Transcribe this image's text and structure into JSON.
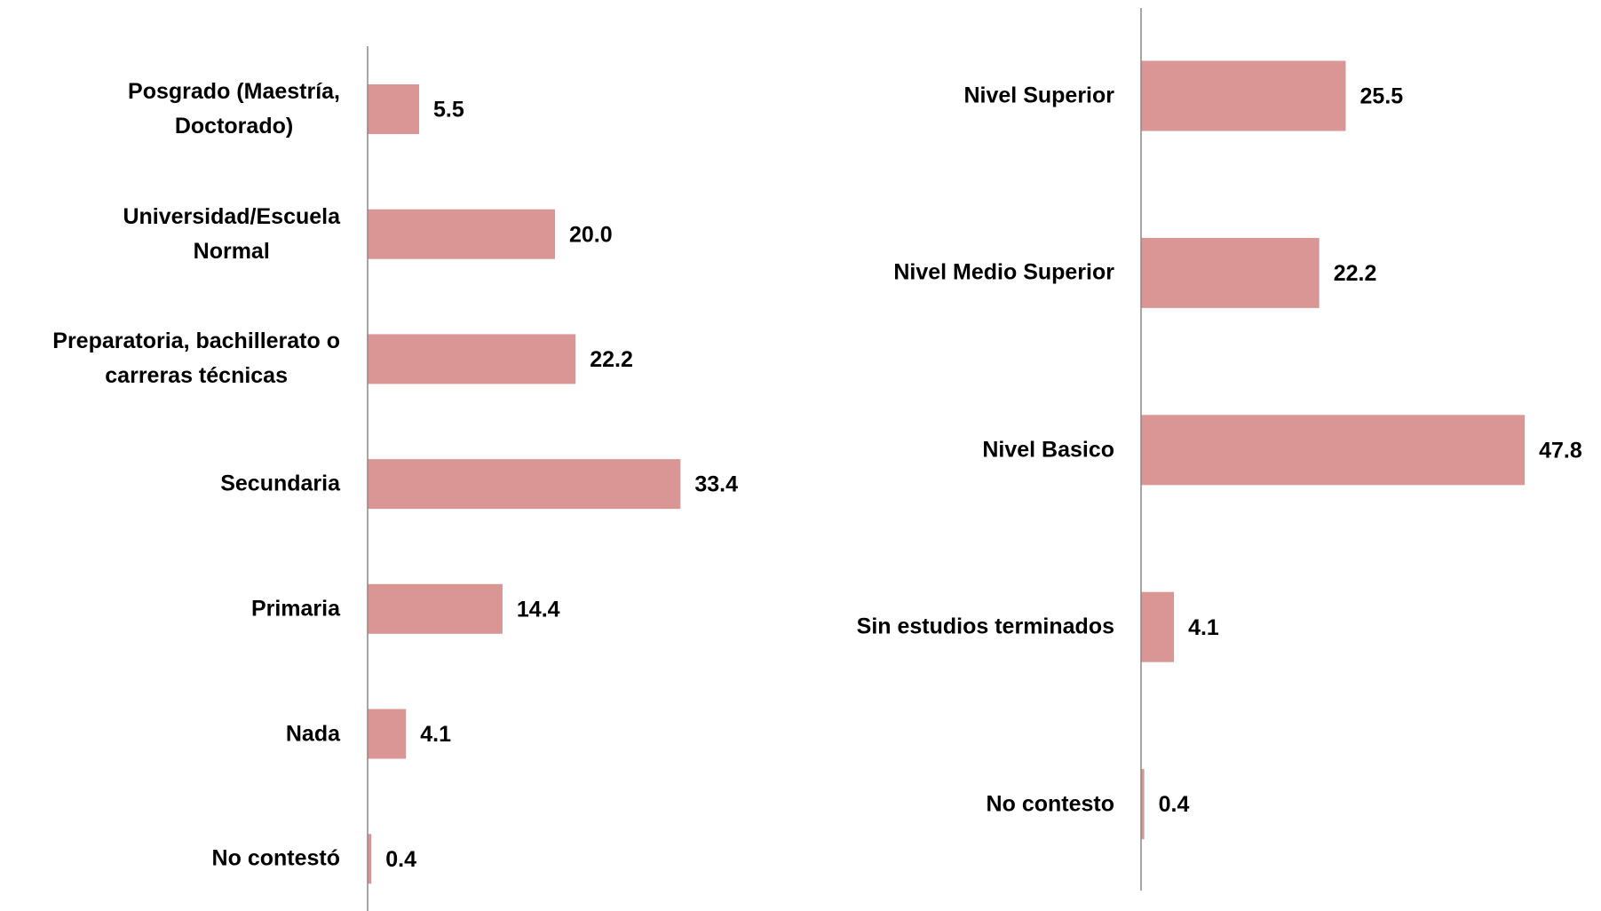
{
  "chart_data": [
    {
      "type": "barh",
      "color": "#d99694",
      "categories": [
        "Posgrado (Maestría,\nDoctorado)",
        "Universidad/Escuela\nNormal",
        "Preparatoria, bachillerato o\ncarreras técnicas",
        "Secundaria",
        "Primaria",
        "Nada",
        "No contestó"
      ],
      "values": [
        5.5,
        20,
        22.2,
        33.4,
        14.4,
        4.1,
        0.4
      ],
      "value_labels": [
        "5.5",
        "20.0",
        "22.2",
        "33.4",
        "14.4",
        "4.1",
        "0.4"
      ]
    },
    {
      "type": "barh",
      "color": "#d99694",
      "categories": [
        "Nivel Superior",
        "Nivel Medio Superior",
        "Nivel Basico",
        "Sin estudios terminados",
        "No contesto"
      ],
      "values": [
        25.5,
        22.2,
        47.8,
        4.1,
        0.4
      ],
      "value_labels": [
        "25.5",
        "22.2",
        "47.8",
        "4.1",
        "0.4"
      ]
    }
  ]
}
